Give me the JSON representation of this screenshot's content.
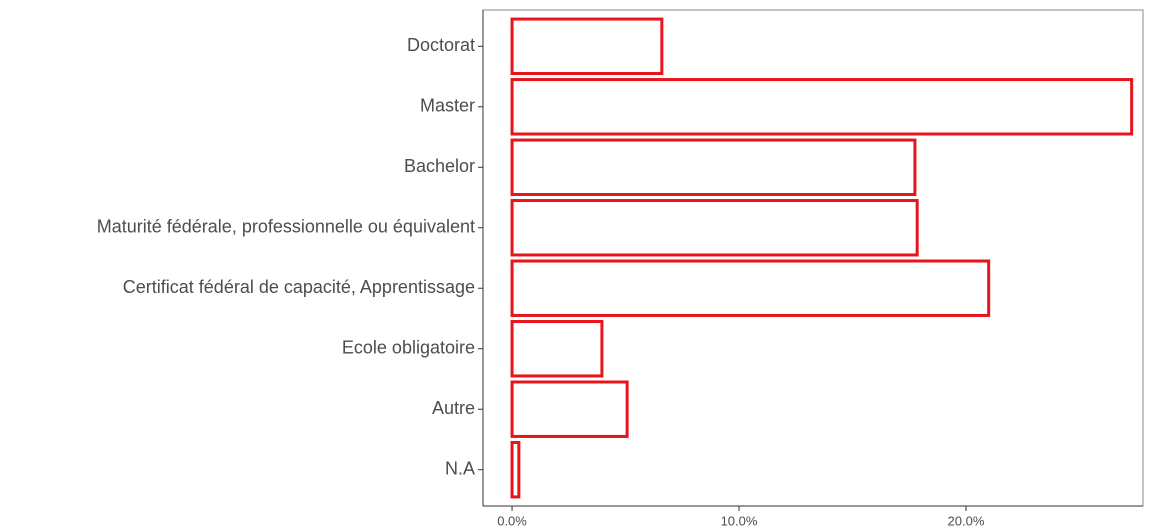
{
  "chart_data": {
    "type": "bar",
    "orientation": "horizontal",
    "categories": [
      "Doctorat",
      "Master",
      "Bachelor",
      "Maturité fédérale, professionnelle ou équivalent",
      "Certificat fédéral de capacité, Apprentissage",
      "Ecole obligatoire",
      "Autre",
      "N.A"
    ],
    "values": [
      6.6,
      27.3,
      17.75,
      17.85,
      21.0,
      3.96,
      5.07,
      0.3
    ],
    "color": "#e8141c",
    "xlim": [
      -1.28,
      27.8
    ],
    "xticks": [
      {
        "value": 0,
        "label": "0.0%"
      },
      {
        "value": 10,
        "label": "10.0%"
      },
      {
        "value": 20,
        "label": "20.0%"
      }
    ],
    "grid": false
  }
}
